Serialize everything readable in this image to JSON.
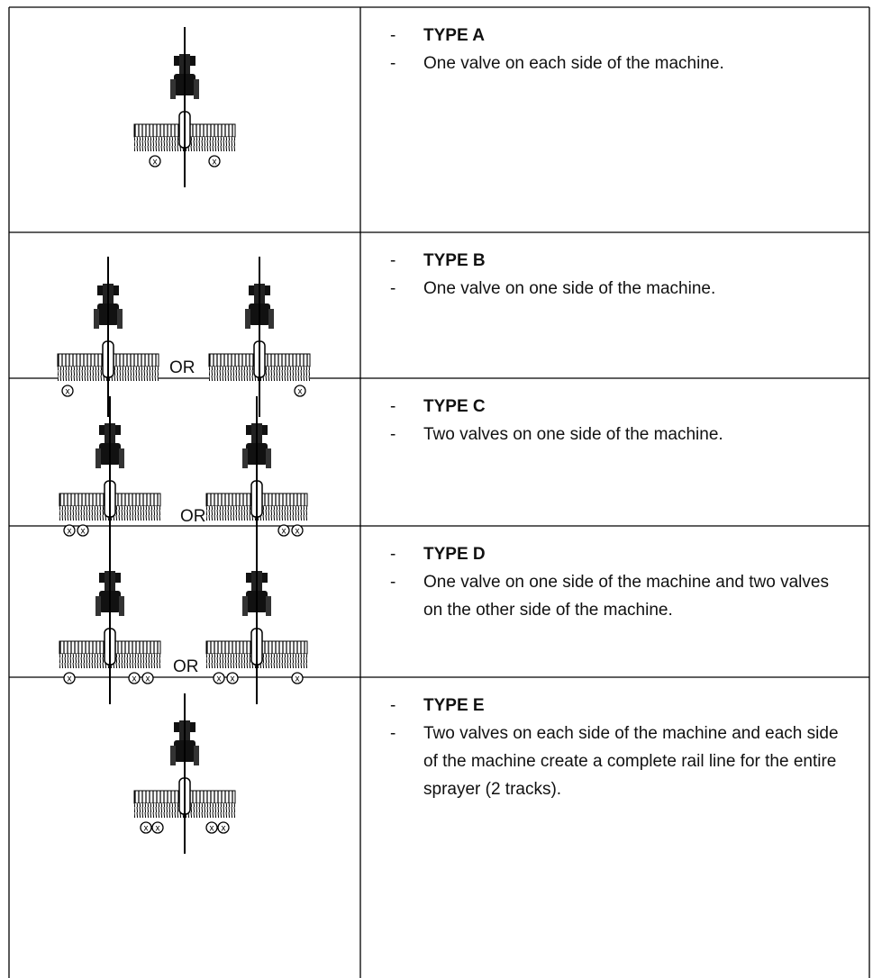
{
  "valve_symbol": "x",
  "rows": [
    {
      "title": "TYPE A",
      "description": "One valve on each side of the machine."
    },
    {
      "title": "TYPE B",
      "description": "One valve on one side of the machine.",
      "or_label": "OR"
    },
    {
      "title": "TYPE C",
      "description": "Two valves on one side of the machine.",
      "or_label": "OR"
    },
    {
      "title": "TYPE D",
      "description": "One valve on one side of the machine and two valves on the other side of the machine.",
      "or_label": "OR"
    },
    {
      "title": "TYPE E",
      "description": "Two valves on each side of the machine and each side of the machine create a complete rail line for the entire sprayer (2 tracks)."
    }
  ],
  "bullet": "-"
}
